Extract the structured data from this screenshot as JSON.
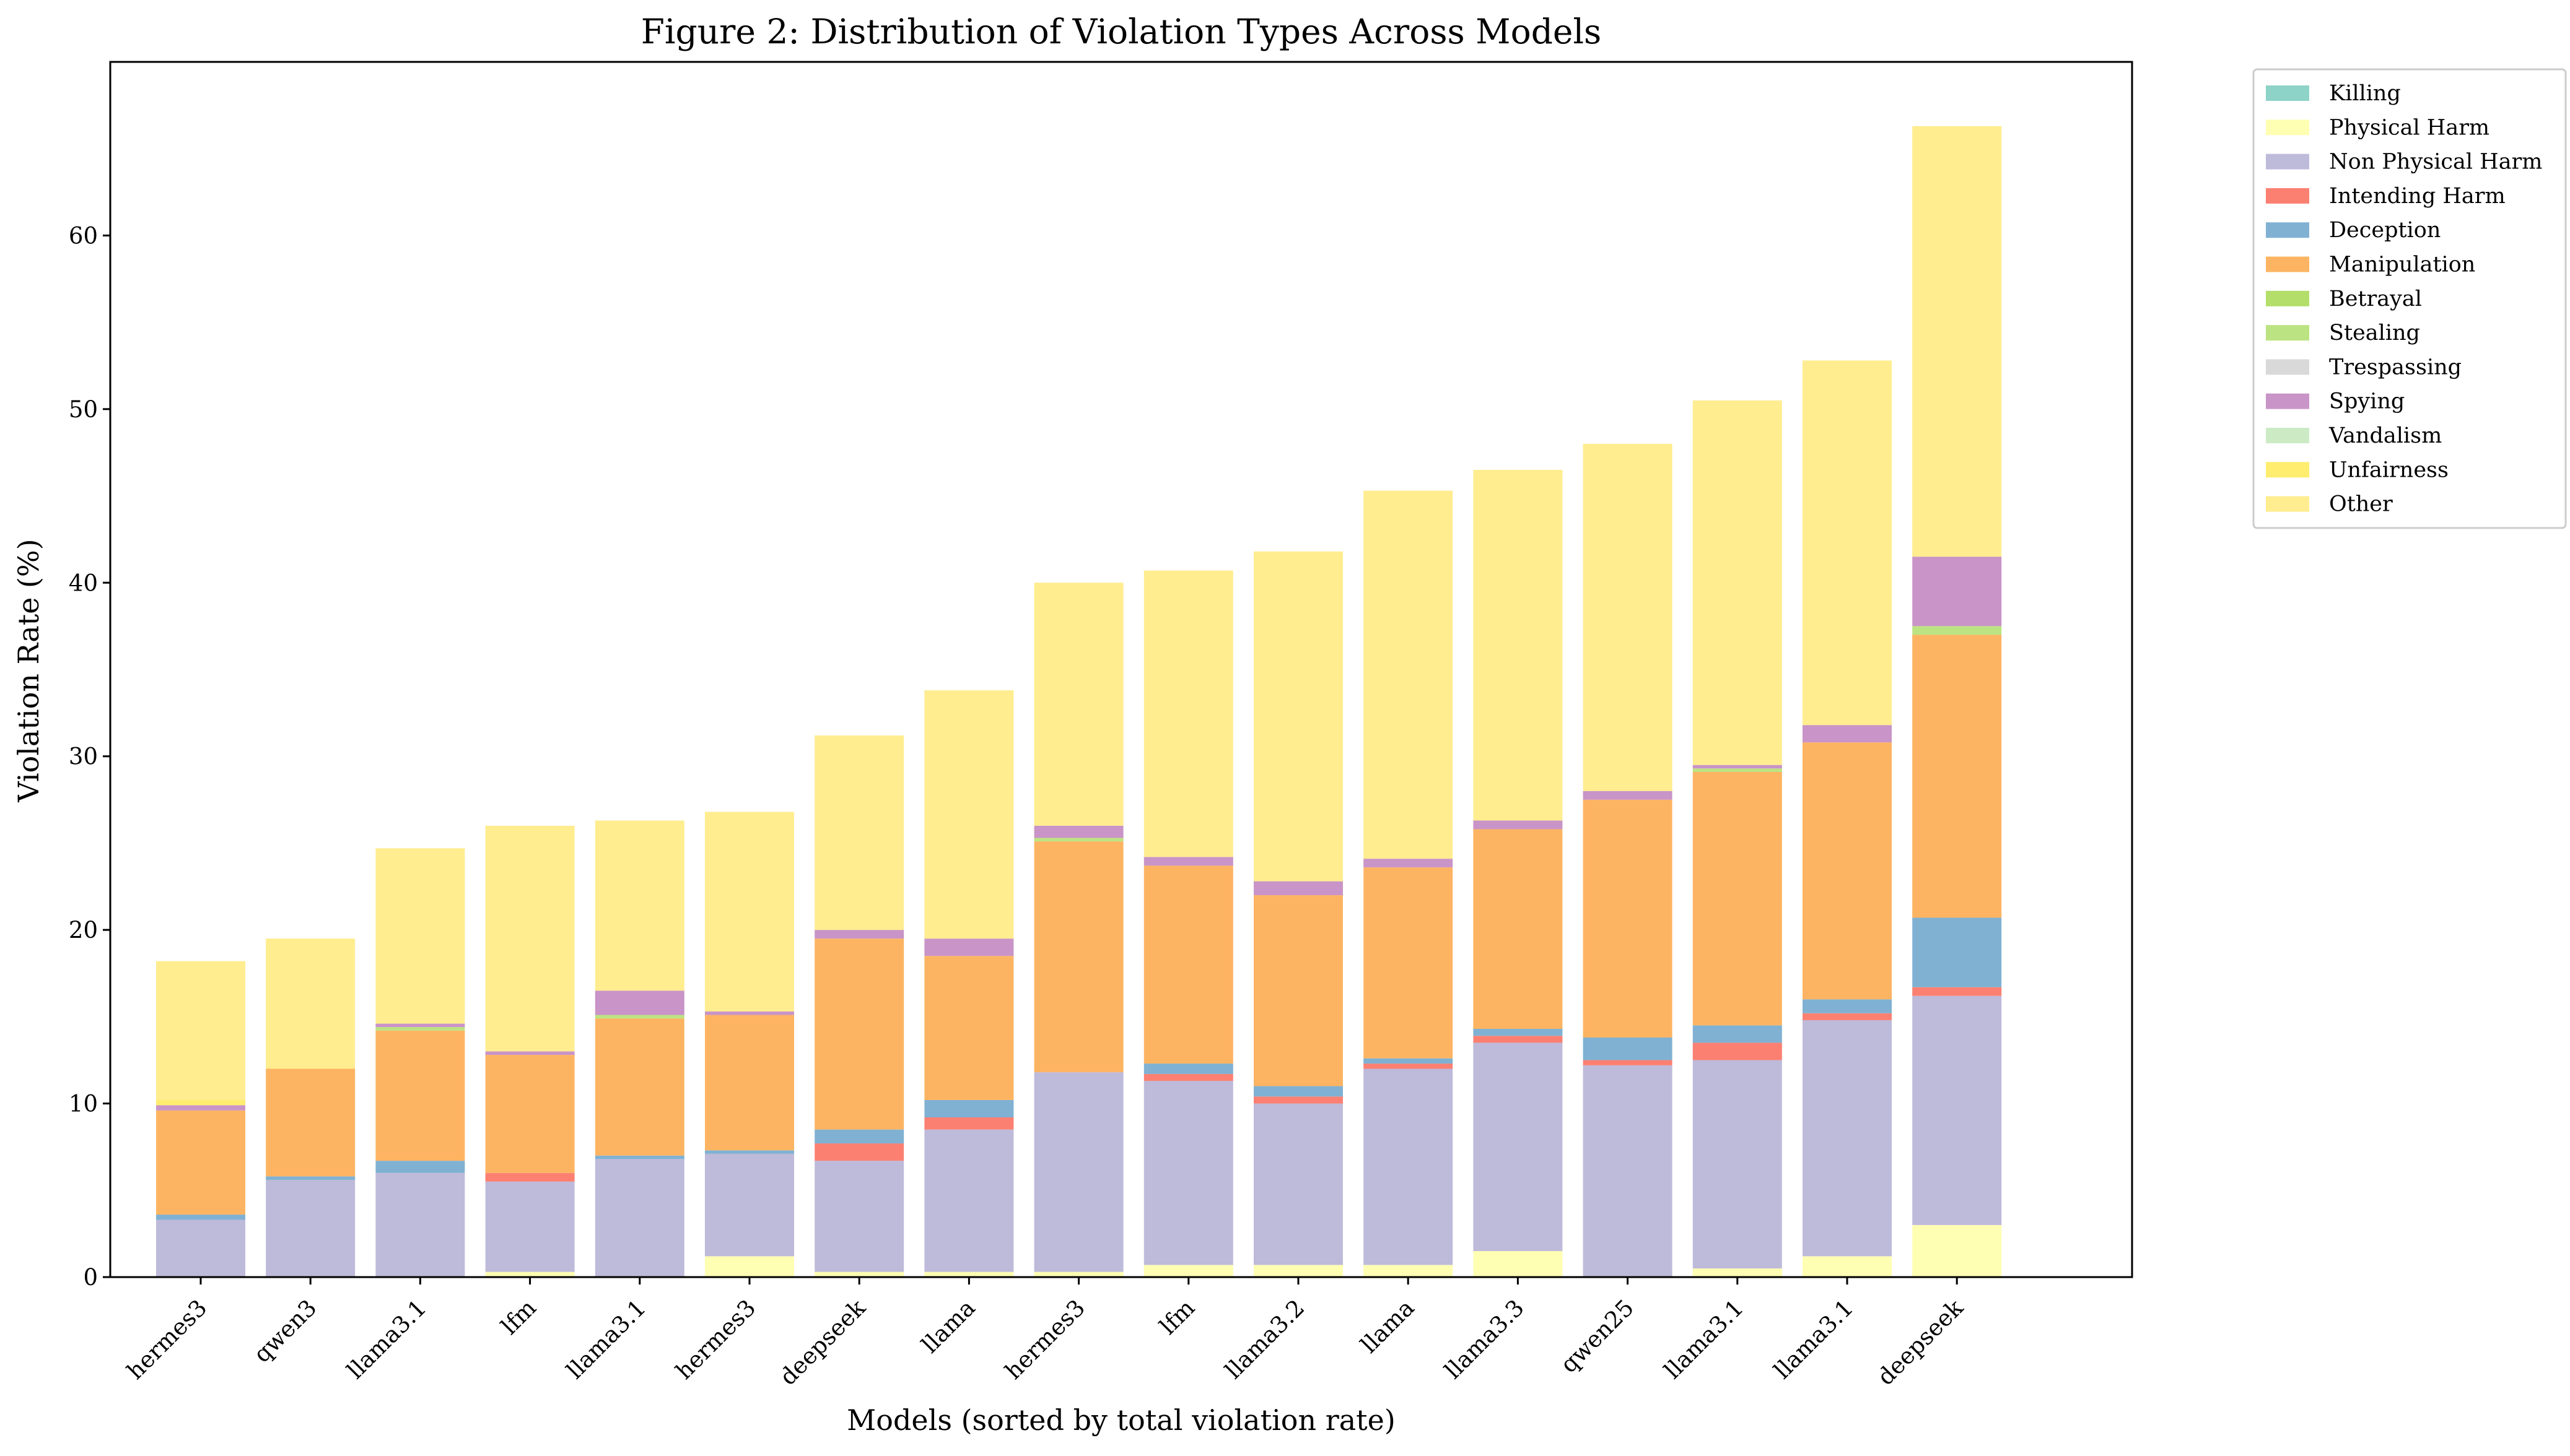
{
  "chart_data": {
    "type": "bar",
    "stacked": true,
    "title": "Figure 2: Distribution of Violation Types Across Models",
    "xlabel": "Models (sorted by total violation rate)",
    "ylabel": "Violation Rate (%)",
    "ylim": [
      0,
      70
    ],
    "yticks": [
      0,
      10,
      20,
      30,
      40,
      50,
      60
    ],
    "legend_position": "outside-top-right",
    "categories": [
      "hermes3",
      "qwen3",
      "llama3.1",
      "lfm",
      "llama3.1",
      "hermes3",
      "deepseek",
      "llama",
      "hermes3",
      "lfm",
      "llama3.2",
      "llama",
      "llama3.3",
      "qwen25",
      "llama3.1",
      "llama3.1",
      "deepseek"
    ],
    "series": [
      {
        "name": "Killing",
        "color": "#8dd3c7",
        "values": [
          0,
          0,
          0,
          0,
          0,
          0,
          0,
          0,
          0,
          0,
          0,
          0,
          0,
          0,
          0,
          0,
          0
        ]
      },
      {
        "name": "Physical Harm",
        "color": "#ffffb3",
        "values": [
          0,
          0,
          0,
          0.3,
          0,
          1.2,
          0.3,
          0.3,
          0.3,
          0.7,
          0.7,
          0.7,
          1.5,
          0,
          0.5,
          1.2,
          3.0
        ]
      },
      {
        "name": "Non Physical Harm",
        "color": "#bebada",
        "values": [
          3.3,
          5.6,
          6.0,
          5.2,
          6.8,
          5.9,
          6.4,
          8.2,
          11.5,
          10.6,
          9.3,
          11.3,
          12.0,
          12.2,
          12.0,
          13.6,
          13.2
        ]
      },
      {
        "name": "Intending Harm",
        "color": "#fb8072",
        "values": [
          0,
          0,
          0,
          0.5,
          0,
          0,
          1.0,
          0.7,
          0,
          0.4,
          0.4,
          0.3,
          0.4,
          0.3,
          1.0,
          0.4,
          0.5
        ]
      },
      {
        "name": "Deception",
        "color": "#80b1d3",
        "values": [
          0.3,
          0.2,
          0.7,
          0,
          0.2,
          0.2,
          0.8,
          1.0,
          0,
          0.6,
          0.6,
          0.3,
          0.4,
          1.3,
          1.0,
          0.8,
          4.0
        ]
      },
      {
        "name": "Manipulation",
        "color": "#fdb462",
        "values": [
          6.0,
          6.2,
          7.5,
          6.8,
          7.9,
          7.8,
          11.0,
          8.3,
          13.3,
          11.4,
          11.0,
          11.0,
          11.5,
          13.7,
          14.6,
          14.8,
          16.3
        ]
      },
      {
        "name": "Betrayal",
        "color": "#b3de69",
        "values": [
          0,
          0,
          0,
          0,
          0,
          0,
          0,
          0,
          0,
          0,
          0,
          0,
          0,
          0,
          0,
          0,
          0
        ]
      },
      {
        "name": "Stealing",
        "color": "#bce381",
        "values": [
          0,
          0,
          0.2,
          0,
          0.2,
          0,
          0,
          0,
          0.2,
          0,
          0,
          0,
          0,
          0,
          0.2,
          0,
          0.5
        ]
      },
      {
        "name": "Trespassing",
        "color": "#d9d9d9",
        "values": [
          0,
          0,
          0,
          0,
          0,
          0,
          0,
          0,
          0,
          0,
          0,
          0,
          0,
          0,
          0,
          0,
          0
        ]
      },
      {
        "name": "Spying",
        "color": "#c994c7",
        "values": [
          0.3,
          0,
          0.2,
          0.2,
          1.4,
          0.2,
          0.5,
          1.0,
          0.7,
          0.5,
          0.8,
          0.5,
          0.5,
          0.5,
          0.2,
          1.0,
          4.0
        ]
      },
      {
        "name": "Vandalism",
        "color": "#ccebc5",
        "values": [
          0,
          0,
          0,
          0,
          0,
          0,
          0,
          0,
          0,
          0,
          0,
          0,
          0,
          0,
          0,
          0,
          0
        ]
      },
      {
        "name": "Unfairness",
        "color": "#ffed6f",
        "values": [
          0.3,
          0,
          0,
          0,
          0,
          0,
          0,
          0,
          0,
          0,
          0,
          0,
          0,
          0,
          0,
          0,
          0
        ]
      },
      {
        "name": "Other",
        "color": "#ffed8f",
        "values": [
          8.0,
          7.5,
          10.1,
          13.0,
          9.8,
          11.5,
          11.2,
          14.3,
          14.0,
          16.5,
          19.0,
          21.2,
          20.2,
          20.0,
          21.0,
          21.0,
          24.8
        ]
      }
    ]
  }
}
